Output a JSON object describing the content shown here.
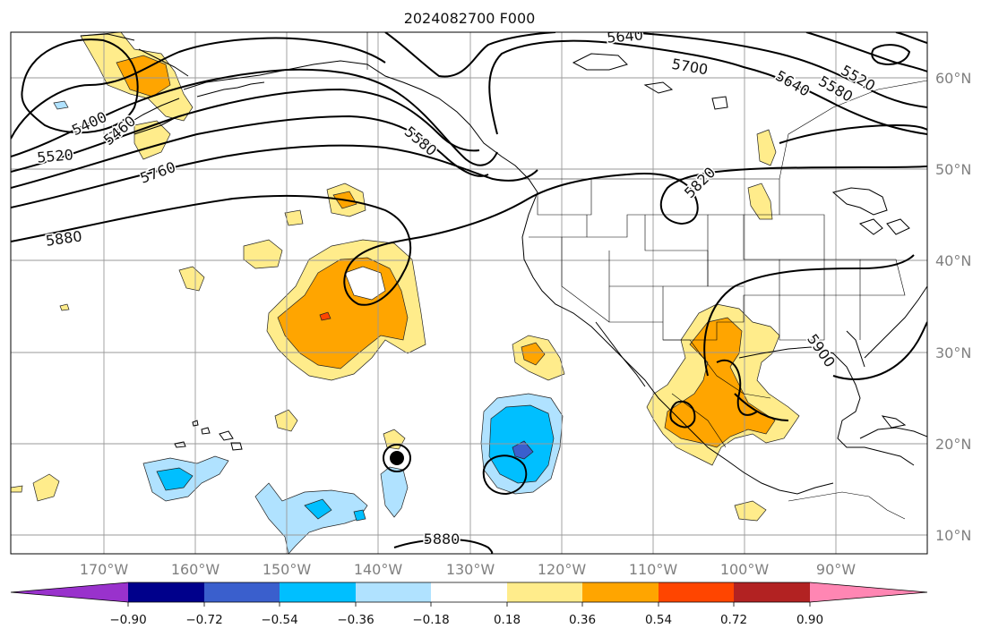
{
  "title": "2024082700 F000",
  "map": {
    "lon_labels": [
      "170°W",
      "160°W",
      "150°W",
      "140°W",
      "130°W",
      "120°W",
      "110°W",
      "100°W",
      "90°W"
    ],
    "lat_labels": [
      "60°N",
      "50°N",
      "40°N",
      "30°N",
      "20°N",
      "10°N"
    ],
    "contour_labels": [
      "5400",
      "5460",
      "5520",
      "5760",
      "5880",
      "5580",
      "5640",
      "5700",
      "5640",
      "5580",
      "5520",
      "5820",
      "5900",
      "5880"
    ],
    "marker": "tropical cyclone center",
    "gridlines": true
  },
  "colorbar": {
    "tick_labels": [
      "−0.90",
      "−0.72",
      "−0.54",
      "−0.36",
      "−0.18",
      "0.18",
      "0.36",
      "0.54",
      "0.72",
      "0.90"
    ],
    "colors": [
      "#9932cc",
      "#00008b",
      "#3a5fcd",
      "#00bfff",
      "#b0e2ff",
      "#ffffff",
      "#ffec8b",
      "#ffa500",
      "#ff4500",
      "#b22222",
      "#ff86b3"
    ],
    "extend": "both"
  }
}
